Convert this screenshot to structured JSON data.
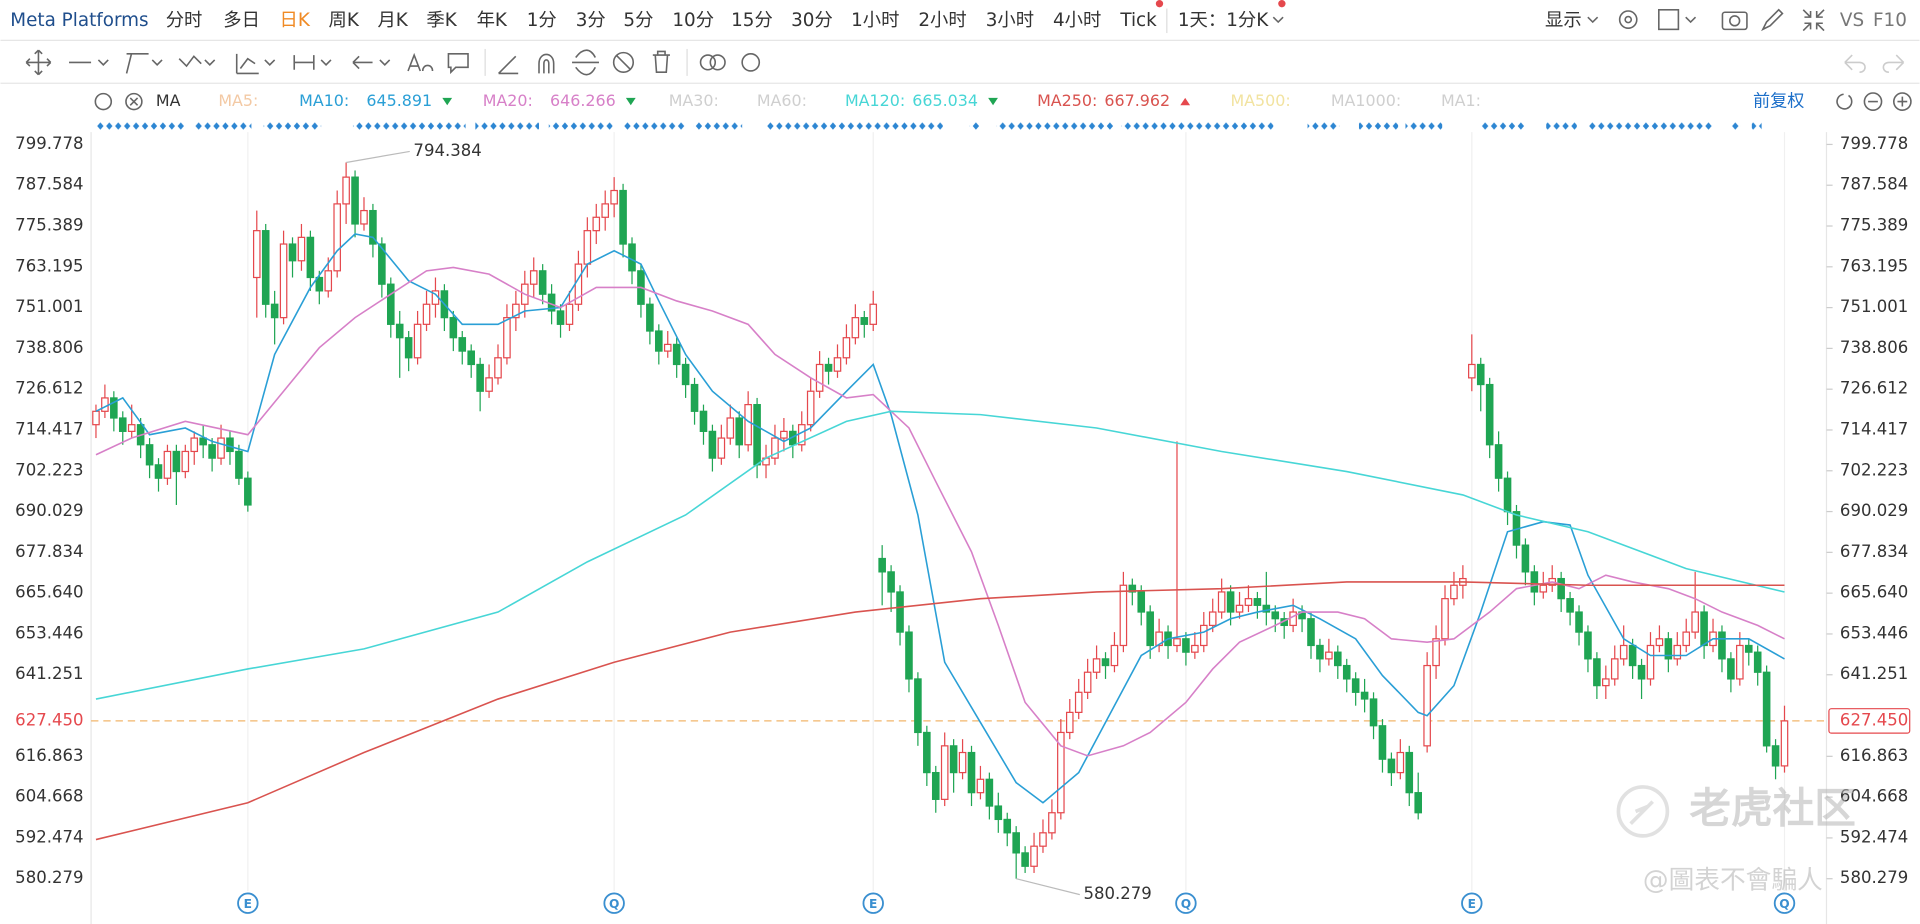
{
  "toolbar": {
    "symbol": "Meta Platforms",
    "periods": [
      "分时",
      "多日",
      "日K",
      "周K",
      "月K",
      "季K",
      "年K",
      "1分",
      "3分",
      "5分",
      "10分",
      "15分",
      "30分",
      "1小时",
      "2小时",
      "3小时",
      "4小时",
      "Tick"
    ],
    "active_period": 2,
    "range": "1天：1分K",
    "display": "显示",
    "vs": "VS",
    "f10": "F10"
  },
  "indicator_bar": {
    "label": "MA",
    "adjust": "前复权",
    "inactive": [
      "MA5:",
      "MA30:",
      "MA60:",
      "MA500:",
      "MA1000:",
      "MA1:"
    ]
  },
  "watermark": {
    "brand": "老虎社区",
    "author": "@圖表不會騙人"
  },
  "chart_data": {
    "type": "candlestick",
    "ylim": [
      567.84,
      803.44
    ],
    "yticks": [
      799.778,
      787.584,
      775.389,
      763.195,
      751.001,
      738.806,
      726.612,
      714.417,
      702.223,
      690.029,
      677.834,
      {
        "value": 665.64,
        "label": "665.640"
      },
      653.446,
      641.251,
      616.863,
      604.668,
      592.474,
      580.279
    ],
    "up_color": "#e5484d",
    "down_color": "#1fa553",
    "last_price": {
      "value": 627.45,
      "label": "627.450",
      "color": "#e5484d"
    },
    "candles": [
      [
        716,
        722,
        712,
        720
      ],
      [
        720,
        728,
        718,
        724
      ],
      [
        724,
        726,
        714,
        718
      ],
      [
        718,
        720,
        710,
        714
      ],
      [
        714,
        722,
        712,
        716
      ],
      [
        716,
        718,
        706,
        710
      ],
      [
        710,
        712,
        700,
        704
      ],
      [
        704,
        706,
        696,
        700
      ],
      [
        700,
        710,
        698,
        708
      ],
      [
        708,
        710,
        692,
        702
      ],
      [
        702,
        710,
        700,
        708
      ],
      [
        708,
        714,
        704,
        712
      ],
      [
        712,
        716,
        706,
        710
      ],
      [
        710,
        712,
        702,
        706
      ],
      [
        706,
        716,
        704,
        712
      ],
      [
        712,
        714,
        704,
        708
      ],
      [
        708,
        710,
        698,
        700
      ],
      [
        700,
        702,
        690,
        692
      ],
      [
        760,
        780,
        748,
        774
      ],
      [
        774,
        776,
        748,
        752
      ],
      [
        752,
        756,
        740,
        748
      ],
      [
        748,
        774,
        746,
        770
      ],
      [
        770,
        772,
        760,
        765
      ],
      [
        765,
        776,
        762,
        772
      ],
      [
        772,
        774,
        756,
        760
      ],
      [
        760,
        762,
        752,
        756
      ],
      [
        756,
        766,
        754,
        762
      ],
      [
        762,
        786,
        760,
        782
      ],
      [
        782,
        794.384,
        776,
        790
      ],
      [
        790,
        792,
        772,
        776
      ],
      [
        776,
        784,
        774,
        780
      ],
      [
        780,
        782,
        766,
        770
      ],
      [
        770,
        772,
        754,
        758
      ],
      [
        758,
        760,
        742,
        746
      ],
      [
        746,
        750,
        730,
        742
      ],
      [
        742,
        744,
        732,
        736
      ],
      [
        736,
        750,
        734,
        746
      ],
      [
        746,
        756,
        744,
        752
      ],
      [
        752,
        760,
        748,
        756
      ],
      [
        756,
        758,
        744,
        748
      ],
      [
        748,
        750,
        738,
        742
      ],
      [
        742,
        744,
        734,
        738
      ],
      [
        738,
        740,
        730,
        734
      ],
      [
        734,
        736,
        720,
        726
      ],
      [
        726,
        734,
        724,
        730
      ],
      [
        730,
        740,
        728,
        736
      ],
      [
        736,
        752,
        734,
        748
      ],
      [
        748,
        756,
        744,
        752
      ],
      [
        752,
        762,
        748,
        758
      ],
      [
        758,
        766,
        754,
        762
      ],
      [
        762,
        764,
        752,
        755
      ],
      [
        755,
        758,
        746,
        750
      ],
      [
        750,
        752,
        742,
        746
      ],
      [
        746,
        756,
        744,
        752
      ],
      [
        752,
        768,
        750,
        764
      ],
      [
        764,
        778,
        760,
        774
      ],
      [
        774,
        782,
        770,
        778
      ],
      [
        778,
        786,
        774,
        782
      ],
      [
        782,
        790,
        778,
        786
      ],
      [
        786,
        788,
        766,
        770
      ],
      [
        770,
        772,
        758,
        762
      ],
      [
        762,
        764,
        748,
        752
      ],
      [
        752,
        754,
        740,
        744
      ],
      [
        744,
        746,
        734,
        738
      ],
      [
        738,
        744,
        736,
        740
      ],
      [
        740,
        742,
        730,
        734
      ],
      [
        734,
        736,
        724,
        728
      ],
      [
        728,
        730,
        716,
        720
      ],
      [
        720,
        722,
        710,
        714
      ],
      [
        714,
        716,
        702,
        706
      ],
      [
        706,
        716,
        704,
        712
      ],
      [
        712,
        722,
        710,
        718
      ],
      [
        718,
        720,
        706,
        710
      ],
      [
        710,
        726,
        708,
        722
      ],
      [
        722,
        724,
        700,
        704
      ],
      [
        704,
        710,
        700,
        706
      ],
      [
        706,
        716,
        704,
        712
      ],
      [
        712,
        718,
        708,
        714
      ],
      [
        714,
        716,
        706,
        710
      ],
      [
        710,
        720,
        708,
        716
      ],
      [
        716,
        730,
        714,
        726
      ],
      [
        726,
        738,
        724,
        734
      ],
      [
        734,
        736,
        728,
        732
      ],
      [
        732,
        740,
        730,
        736
      ],
      [
        736,
        746,
        734,
        742
      ],
      [
        742,
        752,
        740,
        748
      ],
      [
        748,
        750,
        742,
        746
      ],
      [
        746,
        756,
        744,
        752
      ],
      [
        676,
        680,
        662,
        672
      ],
      [
        672,
        674,
        660,
        666
      ],
      [
        666,
        668,
        650,
        654
      ],
      [
        654,
        656,
        636,
        640
      ],
      [
        640,
        642,
        620,
        624
      ],
      [
        624,
        626,
        608,
        612
      ],
      [
        612,
        614,
        600,
        604
      ],
      [
        604,
        624,
        602,
        620
      ],
      [
        620,
        622,
        606,
        612
      ],
      [
        612,
        622,
        610,
        618
      ],
      [
        618,
        620,
        602,
        606
      ],
      [
        606,
        614,
        604,
        610
      ],
      [
        610,
        612,
        598,
        602
      ],
      [
        602,
        606,
        594,
        598
      ],
      [
        598,
        600,
        590,
        594
      ],
      [
        594,
        596,
        580.279,
        588
      ],
      [
        588,
        590,
        582,
        584
      ],
      [
        584,
        594,
        582,
        590
      ],
      [
        590,
        598,
        588,
        594
      ],
      [
        594,
        604,
        592,
        600
      ],
      [
        600,
        628,
        598,
        624
      ],
      [
        624,
        634,
        622,
        630
      ],
      [
        630,
        640,
        628,
        636
      ],
      [
        636,
        646,
        634,
        642
      ],
      [
        642,
        650,
        640,
        646
      ],
      [
        646,
        648,
        640,
        644
      ],
      [
        644,
        654,
        642,
        650
      ],
      [
        650,
        672,
        648,
        668
      ],
      [
        668,
        670,
        662,
        666
      ],
      [
        666,
        668,
        656,
        660
      ],
      [
        660,
        662,
        646,
        650
      ],
      [
        650,
        658,
        648,
        654
      ],
      [
        654,
        656,
        646,
        650
      ],
      [
        650,
        711,
        648,
        652
      ],
      [
        652,
        654,
        644,
        648
      ],
      [
        648,
        654,
        646,
        650
      ],
      [
        650,
        660,
        648,
        656
      ],
      [
        656,
        664,
        654,
        660
      ],
      [
        660,
        670,
        658,
        666
      ],
      [
        666,
        668,
        656,
        660
      ],
      [
        660,
        666,
        658,
        662
      ],
      [
        662,
        668,
        660,
        664
      ],
      [
        664,
        666,
        658,
        662
      ],
      [
        662,
        672,
        656,
        660
      ],
      [
        660,
        662,
        654,
        658
      ],
      [
        658,
        660,
        652,
        656
      ],
      [
        656,
        664,
        654,
        660
      ],
      [
        660,
        662,
        654,
        658
      ],
      [
        658,
        660,
        646,
        650
      ],
      [
        650,
        652,
        642,
        646
      ],
      [
        646,
        652,
        644,
        648
      ],
      [
        648,
        650,
        640,
        644
      ],
      [
        644,
        646,
        636,
        640
      ],
      [
        640,
        642,
        632,
        636
      ],
      [
        636,
        640,
        630,
        634
      ],
      [
        634,
        636,
        622,
        626
      ],
      [
        626,
        628,
        612,
        616
      ],
      [
        616,
        618,
        608,
        612
      ],
      [
        612,
        622,
        610,
        618
      ],
      [
        618,
        620,
        602,
        606
      ],
      [
        606,
        612,
        598,
        600
      ],
      [
        620,
        648,
        618,
        644
      ],
      [
        644,
        656,
        640,
        652
      ],
      [
        652,
        668,
        650,
        664
      ],
      [
        664,
        672,
        662,
        668
      ],
      [
        668,
        674,
        664,
        670
      ],
      [
        730,
        743,
        726,
        734
      ],
      [
        734,
        736,
        720,
        728
      ],
      [
        728,
        730,
        706,
        710
      ],
      [
        710,
        714,
        696,
        700
      ],
      [
        700,
        702,
        686,
        690
      ],
      [
        690,
        692,
        676,
        680
      ],
      [
        680,
        682,
        668,
        672
      ],
      [
        672,
        674,
        662,
        666
      ],
      [
        666,
        672,
        664,
        668
      ],
      [
        668,
        674,
        666,
        670
      ],
      [
        670,
        672,
        660,
        664
      ],
      [
        664,
        666,
        656,
        660
      ],
      [
        660,
        662,
        650,
        654
      ],
      [
        654,
        656,
        642,
        646
      ],
      [
        646,
        648,
        634,
        638
      ],
      [
        638,
        644,
        634,
        640
      ],
      [
        640,
        650,
        638,
        646
      ],
      [
        646,
        656,
        644,
        650
      ],
      [
        650,
        652,
        640,
        644
      ],
      [
        644,
        646,
        634,
        640
      ],
      [
        640,
        654,
        638,
        650
      ],
      [
        650,
        656,
        648,
        652
      ],
      [
        652,
        654,
        642,
        646
      ],
      [
        646,
        654,
        644,
        650
      ],
      [
        650,
        658,
        648,
        654
      ],
      [
        654,
        672,
        652,
        660
      ],
      [
        660,
        662,
        646,
        650
      ],
      [
        650,
        658,
        648,
        654
      ],
      [
        654,
        656,
        642,
        646
      ],
      [
        646,
        648,
        636,
        640
      ],
      [
        640,
        654,
        638,
        650
      ],
      [
        650,
        652,
        644,
        648
      ],
      [
        648,
        650,
        638,
        642
      ],
      [
        642,
        644,
        618,
        620
      ],
      [
        620,
        622,
        610,
        614
      ],
      [
        614,
        632,
        612,
        627.45
      ]
    ],
    "series": [
      {
        "name": "MA10:",
        "color": "#2a9fd6",
        "last_value": 645.891,
        "trend": "down",
        "x": [
          0,
          3,
          6,
          10,
          13,
          17,
          20,
          24,
          27,
          29,
          31,
          35,
          38,
          41,
          45,
          48,
          52,
          55,
          58,
          61,
          63,
          66,
          69,
          73,
          77,
          80,
          84,
          87,
          89,
          92,
          95,
          99,
          103,
          106,
          110,
          113,
          117,
          120,
          124,
          127,
          130,
          134,
          137,
          141,
          144,
          148,
          149,
          152,
          155,
          158,
          162,
          165,
          167,
          171,
          174,
          178,
          181,
          185,
          189
        ],
        "values": [
          720,
          724,
          713,
          715,
          711,
          708,
          737,
          757,
          768,
          773,
          772,
          759,
          755,
          746,
          746,
          750,
          751,
          764,
          768,
          764,
          753,
          737,
          726,
          717,
          711,
          715,
          726,
          734,
          719,
          689,
          645,
          627,
          609,
          603,
          612,
          627,
          647,
          652,
          654,
          658,
          660,
          662,
          658,
          652,
          641,
          630,
          629,
          638,
          660,
          684,
          687,
          686,
          671,
          652,
          647,
          647,
          652,
          652,
          646
        ]
      },
      {
        "name": "MA20:",
        "color": "#d780c8",
        "last_value": 646.266,
        "trend": "down",
        "x": [
          0,
          4,
          10,
          17,
          21,
          25,
          29,
          33,
          37,
          40,
          44,
          48,
          52,
          56,
          61,
          65,
          69,
          73,
          76,
          80,
          84,
          87,
          91,
          94,
          98,
          101,
          104,
          108,
          111,
          115,
          118,
          122,
          125,
          128,
          132,
          135,
          139,
          142,
          145,
          149,
          152,
          156,
          159,
          163,
          166,
          169,
          172,
          176,
          179,
          182,
          186,
          189
        ],
        "values": [
          707,
          712,
          717,
          713,
          726,
          739,
          748,
          755,
          762,
          763,
          761,
          755,
          751,
          757,
          757,
          753,
          750,
          746,
          737,
          730,
          724,
          725,
          715,
          699,
          678,
          656,
          633,
          620,
          617,
          620,
          624,
          633,
          643,
          651,
          656,
          660,
          660,
          658,
          652,
          651,
          652,
          660,
          667,
          669,
          667,
          671,
          669,
          667,
          664,
          660,
          656,
          652
        ]
      },
      {
        "name": "MA120:",
        "color": "#47d6d6",
        "last_value": 665.034,
        "trend": "down",
        "x": [
          0,
          17,
          30,
          45,
          55,
          66,
          75,
          84,
          89,
          99,
          112,
          126,
          140,
          153,
          159,
          167,
          178,
          189
        ],
        "values": [
          634,
          643,
          649,
          660,
          675,
          689,
          706,
          717,
          720,
          719,
          715,
          708,
          702,
          695,
          689,
          684,
          673,
          666
        ]
      },
      {
        "name": "MA250:",
        "color": "#d9534f",
        "last_value": 667.962,
        "trend": "up",
        "x": [
          0,
          17,
          30,
          45,
          58,
          71,
          85,
          99,
          112,
          126,
          140,
          153,
          167,
          181,
          189
        ],
        "values": [
          592,
          603,
          618,
          634,
          645,
          654,
          660,
          664,
          666,
          667,
          669,
          669,
          668,
          668,
          668
        ]
      }
    ],
    "annotations": [
      {
        "candle": 28,
        "field": 1
      },
      {
        "candle": 103,
        "field": 2
      }
    ],
    "events": [
      {
        "candle": 17,
        "label": "E"
      },
      {
        "candle": 58,
        "label": "Q"
      },
      {
        "candle": 87,
        "label": "E"
      },
      {
        "candle": 122,
        "label": "Q"
      },
      {
        "candle": 154,
        "label": "E"
      },
      {
        "candle": 189,
        "label": "Q"
      }
    ]
  }
}
